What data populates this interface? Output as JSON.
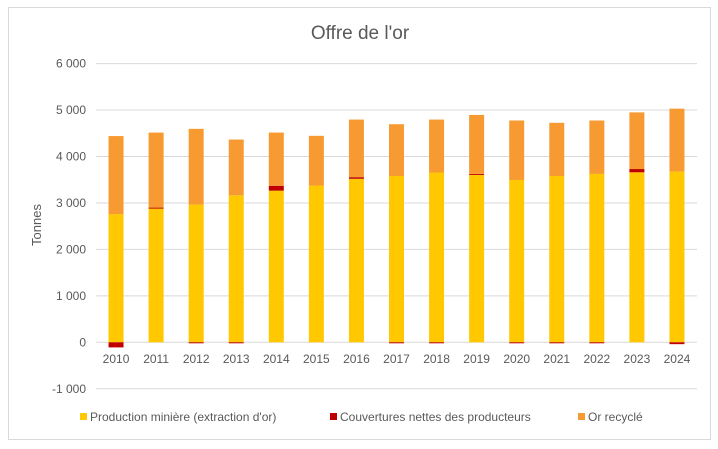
{
  "chart_data": {
    "type": "bar",
    "stacked": true,
    "title": "Offre de l'or",
    "xlabel": "",
    "ylabel": "Tonnes",
    "ylim": [
      -1000,
      6000
    ],
    "yticks": [
      -1000,
      0,
      1000,
      2000,
      3000,
      4000,
      5000,
      6000
    ],
    "ytick_labels": [
      "-1 000",
      "0",
      "1 000",
      "2 000",
      "3 000",
      "4 000",
      "5 000",
      "6 000"
    ],
    "grid": true,
    "legend_position": "bottom",
    "categories": [
      "2010",
      "2011",
      "2012",
      "2013",
      "2014",
      "2015",
      "2016",
      "2017",
      "2018",
      "2019",
      "2020",
      "2021",
      "2022",
      "2023",
      "2024"
    ],
    "series": [
      {
        "name": "Production minière (extraction d'or)",
        "color": "#FFC800",
        "values": [
          2760,
          2880,
          2965,
          3165,
          3265,
          3375,
          3520,
          3580,
          3655,
          3605,
          3495,
          3580,
          3625,
          3660,
          3675
        ]
      },
      {
        "name": "Couvertures nettes des producteurs",
        "color": "#C00000",
        "values": [
          -110,
          20,
          -15,
          -20,
          105,
          0,
          35,
          -20,
          -15,
          20,
          -15,
          -15,
          -15,
          70,
          -40
        ]
      },
      {
        "name": "Or recyclé",
        "color": "#F79A32",
        "values": [
          1680,
          1615,
          1630,
          1200,
          1145,
          1070,
          1240,
          1115,
          1140,
          1270,
          1280,
          1145,
          1150,
          1220,
          1355
        ]
      }
    ]
  }
}
